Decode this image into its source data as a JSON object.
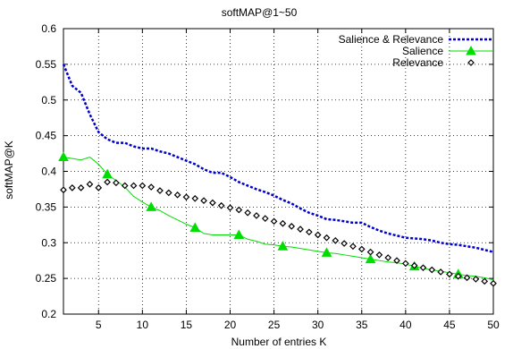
{
  "chart_data": {
    "type": "line",
    "title": "softMAP@1~50",
    "xlabel": "Number of entries K",
    "ylabel": "softMAP@K",
    "xlim": [
      1,
      50
    ],
    "ylim": [
      0.2,
      0.6
    ],
    "x_ticks": [
      5,
      10,
      15,
      20,
      25,
      30,
      35,
      40,
      45,
      50
    ],
    "y_ticks": [
      0.2,
      0.25,
      0.3,
      0.35,
      0.4,
      0.45,
      0.5,
      0.55,
      0.6
    ],
    "grid": true,
    "legend_position": "top-right",
    "x": [
      1,
      2,
      3,
      4,
      5,
      6,
      7,
      8,
      9,
      10,
      11,
      12,
      13,
      14,
      15,
      16,
      17,
      18,
      19,
      20,
      21,
      22,
      23,
      24,
      25,
      26,
      27,
      28,
      29,
      30,
      31,
      32,
      33,
      34,
      35,
      36,
      37,
      38,
      39,
      40,
      41,
      42,
      43,
      44,
      45,
      46,
      47,
      48,
      49,
      50
    ],
    "series": [
      {
        "name": "Salience & Relevance",
        "color": "#0000cc",
        "style": "dotted-line",
        "values": [
          0.55,
          0.52,
          0.51,
          0.48,
          0.455,
          0.445,
          0.44,
          0.44,
          0.435,
          0.432,
          0.432,
          0.428,
          0.425,
          0.42,
          0.415,
          0.41,
          0.403,
          0.398,
          0.398,
          0.392,
          0.385,
          0.38,
          0.375,
          0.371,
          0.366,
          0.36,
          0.355,
          0.348,
          0.342,
          0.338,
          0.333,
          0.332,
          0.33,
          0.328,
          0.328,
          0.322,
          0.317,
          0.313,
          0.31,
          0.307,
          0.306,
          0.305,
          0.303,
          0.3,
          0.298,
          0.297,
          0.295,
          0.293,
          0.29,
          0.287
        ]
      },
      {
        "name": "Salience",
        "color": "#00dd00",
        "style": "line-triangle-markers",
        "values": [
          0.42,
          0.418,
          0.416,
          0.42,
          0.41,
          0.396,
          0.387,
          0.378,
          0.365,
          0.357,
          0.35,
          0.345,
          0.338,
          0.332,
          0.326,
          0.321,
          0.313,
          0.311,
          0.311,
          0.311,
          0.311,
          0.305,
          0.302,
          0.298,
          0.297,
          0.295,
          0.294,
          0.292,
          0.29,
          0.288,
          0.286,
          0.285,
          0.283,
          0.281,
          0.279,
          0.277,
          0.275,
          0.273,
          0.272,
          0.27,
          0.267,
          0.264,
          0.262,
          0.26,
          0.258,
          0.256,
          0.254,
          0.253,
          0.251,
          0.248
        ]
      },
      {
        "name": "Relevance",
        "color": "#000000",
        "style": "diamond-markers",
        "values": [
          0.374,
          0.377,
          0.377,
          0.382,
          0.377,
          0.385,
          0.384,
          0.38,
          0.38,
          0.38,
          0.378,
          0.373,
          0.37,
          0.367,
          0.364,
          0.362,
          0.359,
          0.356,
          0.352,
          0.349,
          0.346,
          0.342,
          0.338,
          0.334,
          0.33,
          0.327,
          0.323,
          0.319,
          0.315,
          0.311,
          0.307,
          0.303,
          0.299,
          0.295,
          0.291,
          0.287,
          0.283,
          0.279,
          0.275,
          0.271,
          0.268,
          0.265,
          0.262,
          0.259,
          0.256,
          0.253,
          0.251,
          0.249,
          0.246,
          0.243
        ]
      }
    ]
  }
}
